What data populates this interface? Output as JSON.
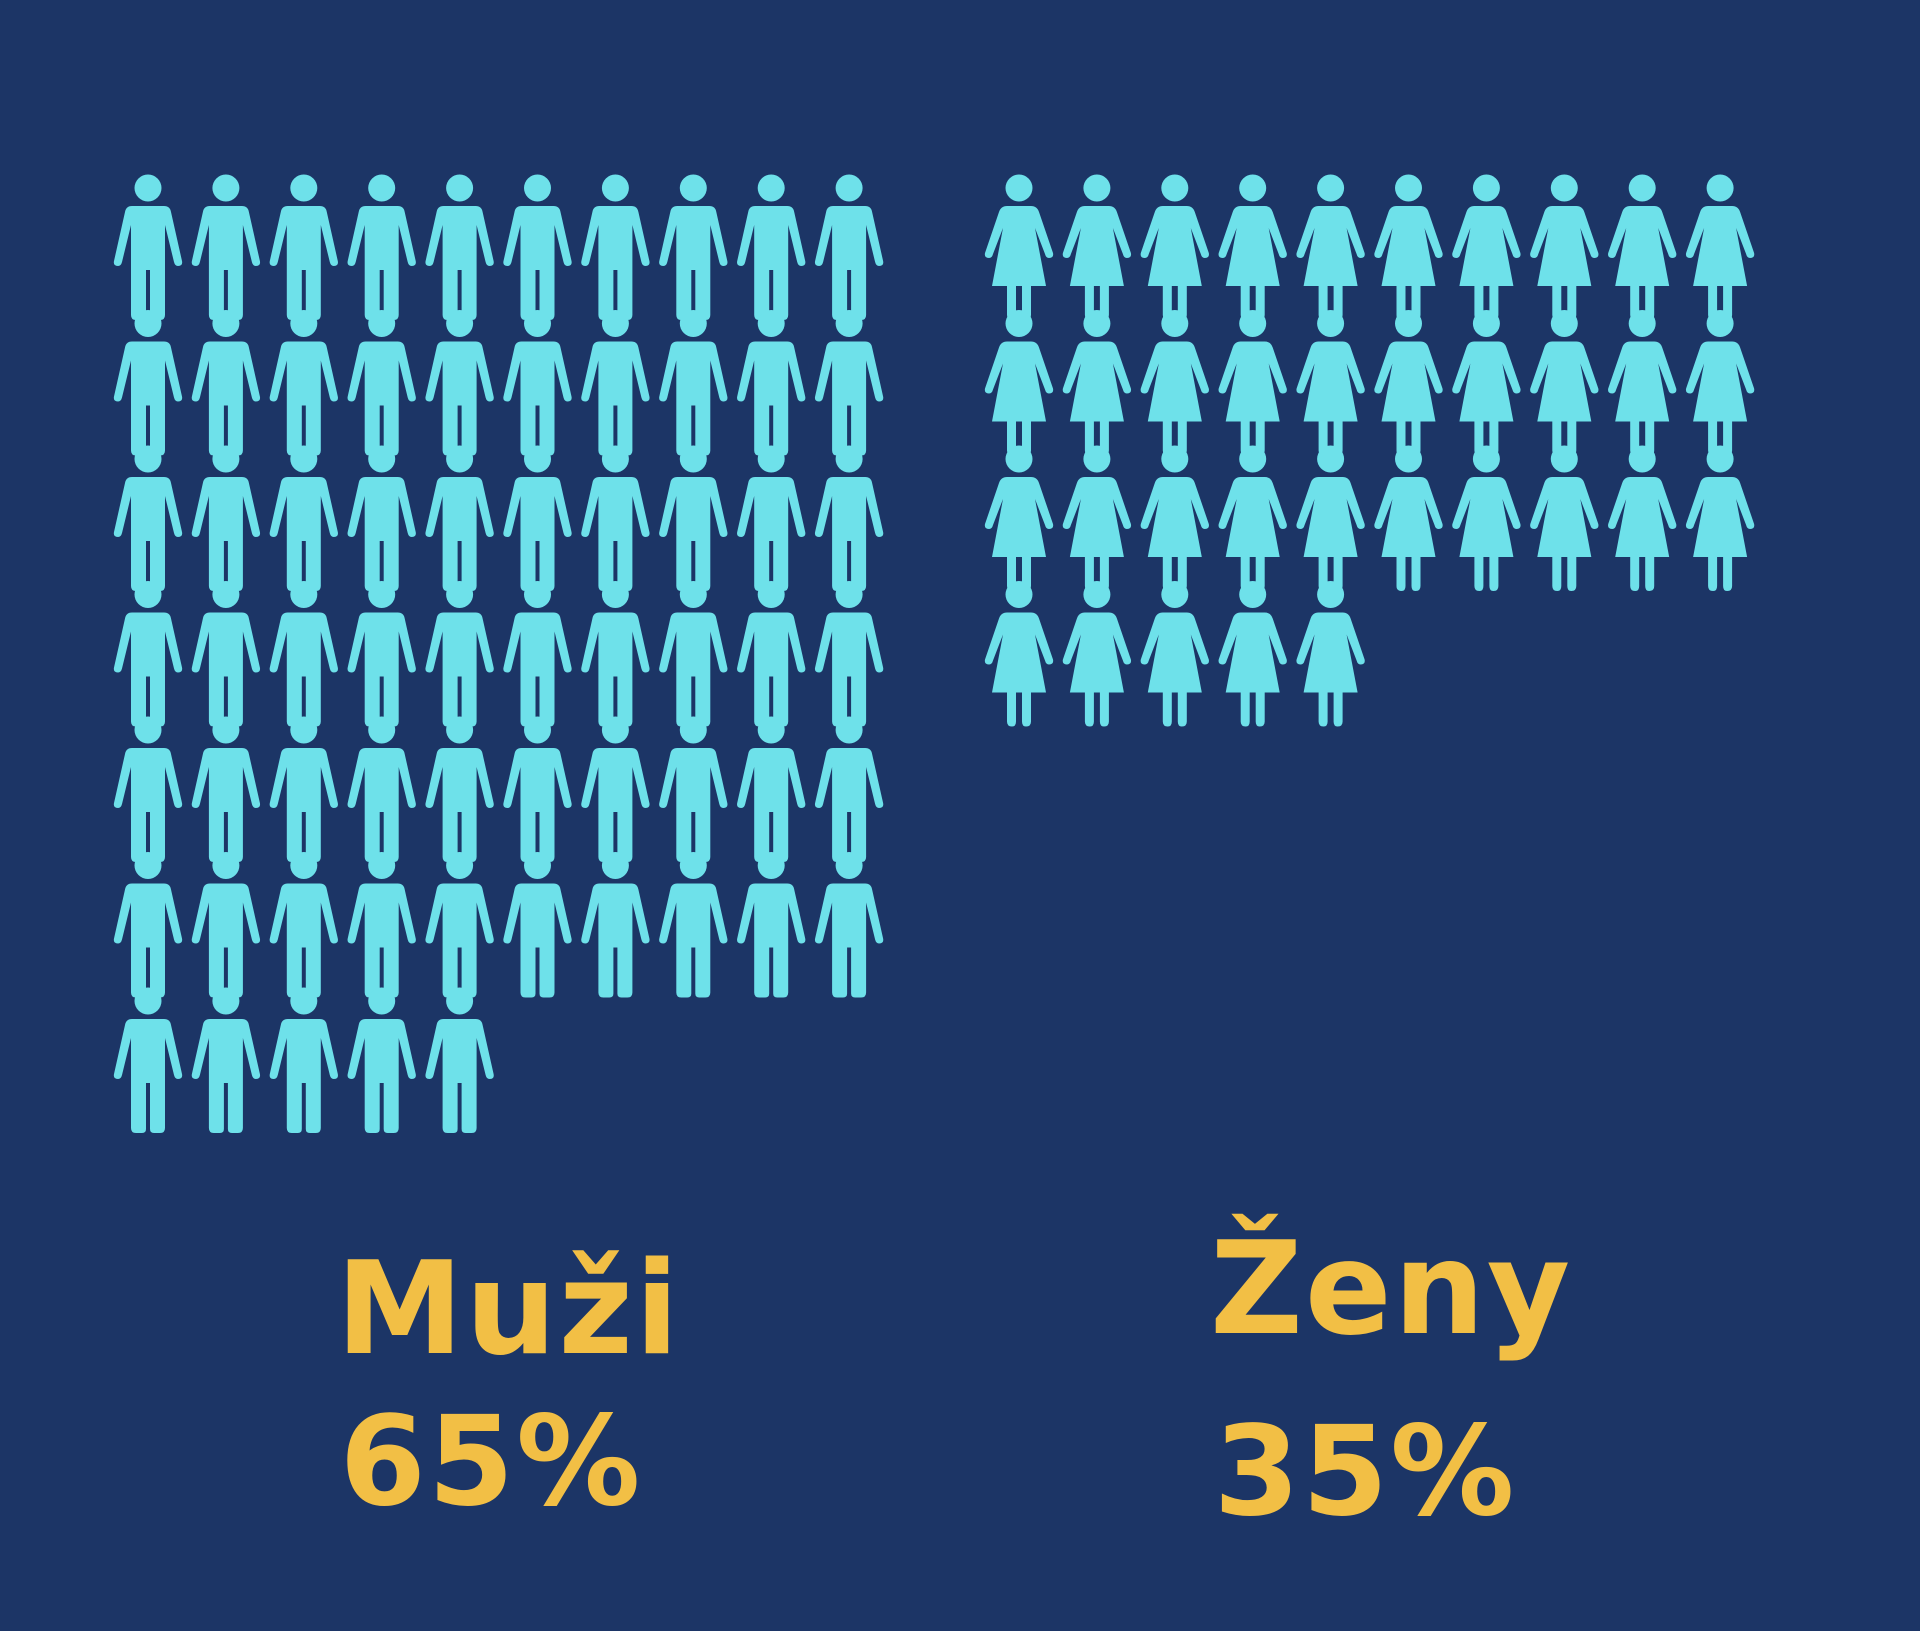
{
  "chart_data": {
    "type": "pictogram",
    "icon_color": "#6ee1ea",
    "background_color": "#1c3566",
    "text_color": "#f2bf45",
    "icons_per_row": 10,
    "series": [
      {
        "name": "Muži",
        "percent": "65%",
        "value": 65,
        "icon": "man-icon"
      },
      {
        "name": "Ženy",
        "percent": "35%",
        "value": 35,
        "icon": "woman-icon"
      }
    ]
  }
}
